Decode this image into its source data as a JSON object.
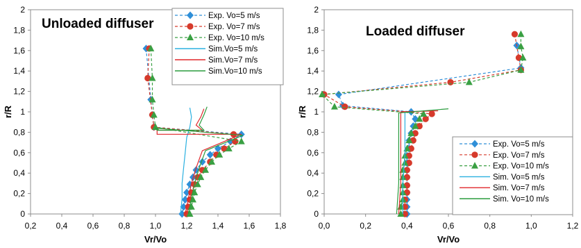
{
  "chart_data": [
    {
      "type": "line",
      "title": "Unloaded diffuser",
      "xlabel": "Vr/Vo",
      "ylabel": "r/R",
      "xlim": [
        0.2,
        1.8
      ],
      "ylim": [
        0,
        2
      ],
      "xticks": [
        "0,2",
        "0,4",
        "0,6",
        "0,8",
        "1,0",
        "1,2",
        "1,4",
        "1,6",
        "1,8"
      ],
      "yticks": [
        "0",
        "0,2",
        "0,4",
        "0,6",
        "0,8",
        "1",
        "1,2",
        "1,4",
        "1,6",
        "1,8",
        "2"
      ],
      "grid": false,
      "legend_position": "top-right",
      "series": [
        {
          "name": "Exp. Vo=5 m/s",
          "kind": "exp",
          "color": "#2f8fd8",
          "marker": "diamond",
          "points": [
            [
              0.94,
              1.62
            ],
            [
              0.97,
              1.12
            ],
            [
              0.98,
              0.97
            ],
            [
              0.99,
              0.85
            ],
            [
              1.55,
              0.78
            ],
            [
              1.48,
              0.71
            ],
            [
              1.4,
              0.64
            ],
            [
              1.35,
              0.58
            ],
            [
              1.3,
              0.51
            ],
            [
              1.26,
              0.43
            ],
            [
              1.24,
              0.36
            ],
            [
              1.22,
              0.29
            ],
            [
              1.2,
              0.21
            ],
            [
              1.19,
              0.14
            ],
            [
              1.18,
              0.07
            ],
            [
              1.17,
              0.0
            ]
          ]
        },
        {
          "name": "Exp. Vo=7 m/s",
          "kind": "exp",
          "color": "#d63a2b",
          "marker": "circle",
          "points": [
            [
              0.96,
              1.62
            ],
            [
              0.95,
              1.33
            ],
            [
              0.98,
              0.97
            ],
            [
              0.99,
              0.85
            ],
            [
              1.5,
              0.78
            ],
            [
              1.51,
              0.71
            ],
            [
              1.44,
              0.64
            ],
            [
              1.39,
              0.58
            ],
            [
              1.35,
              0.51
            ],
            [
              1.3,
              0.43
            ],
            [
              1.27,
              0.36
            ],
            [
              1.25,
              0.29
            ],
            [
              1.23,
              0.21
            ],
            [
              1.22,
              0.14
            ],
            [
              1.21,
              0.07
            ],
            [
              1.2,
              0.0
            ]
          ]
        },
        {
          "name": "Exp. Vo=10 m/s",
          "kind": "exp",
          "color": "#3aa043",
          "marker": "triangle",
          "points": [
            [
              0.97,
              1.62
            ],
            [
              0.98,
              1.33
            ],
            [
              0.98,
              1.12
            ],
            [
              0.99,
              0.97
            ],
            [
              1.0,
              0.85
            ],
            [
              1.55,
              0.71
            ],
            [
              1.47,
              0.64
            ],
            [
              1.41,
              0.58
            ],
            [
              1.36,
              0.51
            ],
            [
              1.32,
              0.43
            ],
            [
              1.29,
              0.36
            ],
            [
              1.27,
              0.29
            ],
            [
              1.25,
              0.21
            ],
            [
              1.24,
              0.14
            ],
            [
              1.23,
              0.07
            ],
            [
              1.22,
              0.0
            ]
          ]
        },
        {
          "name": "Sim.Vo=5 m/s",
          "kind": "sim",
          "color": "#2ab0e0",
          "points": [
            [
              1.22,
              1.04
            ],
            [
              1.23,
              0.95
            ],
            [
              1.22,
              0.85
            ],
            [
              1.2,
              0.75
            ],
            [
              1.19,
              0.6
            ],
            [
              1.18,
              0.45
            ],
            [
              1.17,
              0.3
            ],
            [
              1.17,
              0.15
            ],
            [
              1.16,
              0.0
            ]
          ]
        },
        {
          "name": "Sim.Vo=7 m/s",
          "kind": "sim",
          "color": "#e0262a",
          "points": [
            [
              1.31,
              1.03
            ],
            [
              1.29,
              0.95
            ],
            [
              1.26,
              0.87
            ],
            [
              1.3,
              0.82
            ],
            [
              1.01,
              0.82
            ],
            [
              1.01,
              0.78
            ],
            [
              1.55,
              0.78
            ],
            [
              1.3,
              0.62
            ],
            [
              1.26,
              0.45
            ],
            [
              1.23,
              0.3
            ],
            [
              1.21,
              0.15
            ],
            [
              1.19,
              0.0
            ]
          ]
        },
        {
          "name": "Sim.Vo=10 m/s",
          "kind": "sim",
          "color": "#2a9b3d",
          "points": [
            [
              1.33,
              1.05
            ],
            [
              1.31,
              0.97
            ],
            [
              1.28,
              0.87
            ],
            [
              1.31,
              0.82
            ],
            [
              1.01,
              0.82
            ],
            [
              1.0,
              0.84
            ],
            [
              1.56,
              0.77
            ],
            [
              1.32,
              0.62
            ],
            [
              1.28,
              0.45
            ],
            [
              1.25,
              0.3
            ],
            [
              1.23,
              0.15
            ],
            [
              1.21,
              0.0
            ]
          ]
        }
      ]
    },
    {
      "type": "line",
      "title": "Loaded diffuser",
      "xlabel": "Vr/Vo",
      "ylabel": "r/R",
      "xlim": [
        0,
        1.2
      ],
      "ylim": [
        0,
        2
      ],
      "xticks": [
        "0,0",
        "0,2",
        "0,4",
        "0,6",
        "0,8",
        "1,0",
        "1,2"
      ],
      "yticks": [
        "0",
        "0,2",
        "0,4",
        "0,6",
        "0,8",
        "1",
        "1,2",
        "1,4",
        "1,6",
        "1,8",
        "2"
      ],
      "grid": false,
      "legend_position": "bottom-right",
      "series": [
        {
          "name": "Exp. Vo=5 m/s",
          "kind": "exp",
          "color": "#2f8fd8",
          "marker": "diamond",
          "points": [
            [
              0.93,
              1.65
            ],
            [
              0.95,
              1.43
            ],
            [
              0.07,
              1.17
            ],
            [
              0.09,
              1.06
            ],
            [
              0.42,
              1.0
            ],
            [
              0.44,
              0.93
            ],
            [
              0.43,
              0.86
            ],
            [
              0.42,
              0.79
            ],
            [
              0.41,
              0.72
            ],
            [
              0.41,
              0.64
            ],
            [
              0.4,
              0.57
            ],
            [
              0.4,
              0.5
            ],
            [
              0.4,
              0.43
            ],
            [
              0.4,
              0.36
            ],
            [
              0.4,
              0.28
            ],
            [
              0.4,
              0.21
            ],
            [
              0.4,
              0.14
            ],
            [
              0.4,
              0.07
            ],
            [
              0.4,
              0.0
            ]
          ]
        },
        {
          "name": "Exp. Vo=7 m/s",
          "kind": "exp",
          "color": "#d63a2b",
          "marker": "circle",
          "points": [
            [
              0.92,
              1.76
            ],
            [
              0.94,
              1.53
            ],
            [
              0.95,
              1.41
            ],
            [
              0.61,
              1.29
            ],
            [
              0.0,
              1.17
            ],
            [
              0.1,
              1.05
            ],
            [
              0.52,
              0.98
            ],
            [
              0.49,
              0.93
            ],
            [
              0.46,
              0.86
            ],
            [
              0.44,
              0.79
            ],
            [
              0.43,
              0.72
            ],
            [
              0.42,
              0.64
            ],
            [
              0.41,
              0.57
            ],
            [
              0.41,
              0.5
            ],
            [
              0.4,
              0.43
            ],
            [
              0.4,
              0.36
            ],
            [
              0.4,
              0.28
            ],
            [
              0.4,
              0.21
            ],
            [
              0.39,
              0.14
            ],
            [
              0.39,
              0.07
            ],
            [
              0.39,
              0.0
            ]
          ]
        },
        {
          "name": "Exp. Vo=10 m/s",
          "kind": "exp",
          "color": "#3aa043",
          "marker": "triangle",
          "points": [
            [
              0.95,
              1.76
            ],
            [
              0.95,
              1.64
            ],
            [
              0.96,
              1.53
            ],
            [
              0.95,
              1.41
            ],
            [
              0.7,
              1.29
            ],
            [
              -0.01,
              1.17
            ],
            [
              0.05,
              1.05
            ],
            [
              0.48,
              0.98
            ],
            [
              0.46,
              0.93
            ],
            [
              0.44,
              0.86
            ],
            [
              0.42,
              0.79
            ],
            [
              0.41,
              0.72
            ],
            [
              0.4,
              0.64
            ],
            [
              0.39,
              0.57
            ],
            [
              0.39,
              0.5
            ],
            [
              0.38,
              0.43
            ],
            [
              0.38,
              0.36
            ],
            [
              0.38,
              0.28
            ],
            [
              0.38,
              0.21
            ],
            [
              0.38,
              0.14
            ],
            [
              0.37,
              0.07
            ],
            [
              0.37,
              0.0
            ]
          ]
        },
        {
          "name": "Sim. Vo=5 m/s",
          "kind": "sim",
          "color": "#2ab0e0",
          "points": [
            [
              0.39,
              1.0
            ],
            [
              0.39,
              0.6
            ],
            [
              0.38,
              0.3
            ],
            [
              0.38,
              0.0
            ]
          ]
        },
        {
          "name": "Sim. Vo=7 m/s",
          "kind": "sim",
          "color": "#e0262a",
          "points": [
            [
              0.55,
              1.01
            ],
            [
              0.37,
              1.0
            ],
            [
              0.37,
              0.6
            ],
            [
              0.37,
              0.3
            ],
            [
              0.36,
              0.0
            ]
          ]
        },
        {
          "name": "Sim. Vo=10 m/s",
          "kind": "sim",
          "color": "#2a9b3d",
          "points": [
            [
              0.6,
              1.03
            ],
            [
              0.36,
              0.99
            ],
            [
              0.36,
              0.6
            ],
            [
              0.36,
              0.3
            ],
            [
              0.35,
              0.0
            ]
          ]
        }
      ]
    }
  ]
}
